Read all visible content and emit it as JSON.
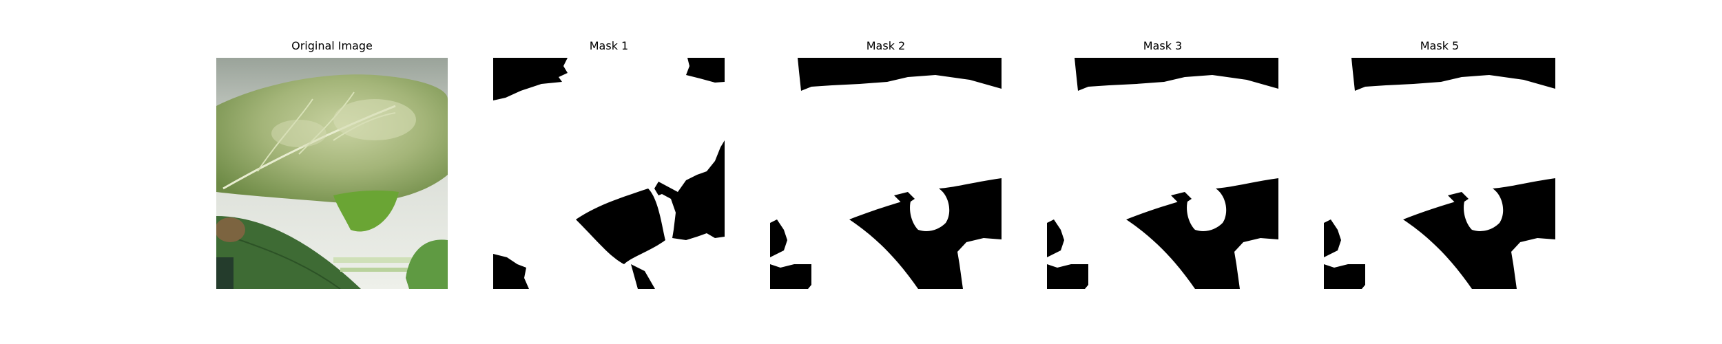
{
  "figure": {
    "panels": [
      {
        "title": "Original Image",
        "kind": "photo",
        "depicts": "close-up of a green leaf"
      },
      {
        "title": "Mask 1",
        "kind": "mask"
      },
      {
        "title": "Mask 2",
        "kind": "mask"
      },
      {
        "title": "Mask 3",
        "kind": "mask"
      },
      {
        "title": "Mask 5",
        "kind": "mask"
      }
    ]
  },
  "colors": {
    "mask_foreground": "#ffffff",
    "mask_background": "#000000",
    "leaf_light": "#b5c58a",
    "leaf_mid": "#8fa563",
    "leaf_dark": "#3f6b2e",
    "backdrop": "#d8dcd4"
  }
}
